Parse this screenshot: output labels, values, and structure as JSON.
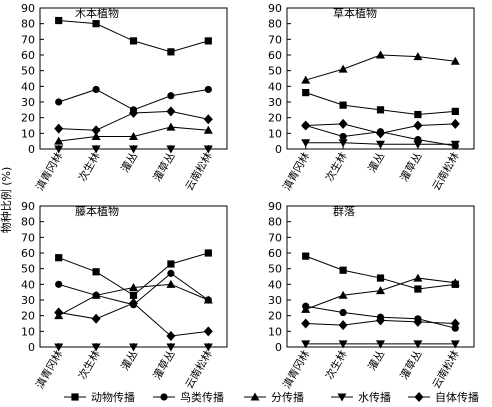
{
  "figure": {
    "ylabel": "物种比例 (%)",
    "categories": [
      "滇青冈林",
      "次生林",
      "灌丛",
      "灌草丛",
      "云南松林"
    ],
    "yticks": [
      0,
      10,
      20,
      30,
      40,
      50,
      60,
      70,
      80,
      90
    ],
    "legend": [
      "动物传播",
      "鸟类传播",
      "分传播",
      "水传播",
      "自体传播"
    ]
  },
  "chart_data": [
    {
      "type": "line",
      "title": "木本植物",
      "ylim": [
        0,
        90
      ],
      "categories": [
        "滇青冈林",
        "次生林",
        "灌丛",
        "灌草丛",
        "云南松林"
      ],
      "series": [
        {
          "name": "动物传播",
          "marker": "square",
          "values": [
            82,
            80,
            69,
            62,
            69
          ]
        },
        {
          "name": "鸟类传播",
          "marker": "circle",
          "values": [
            30,
            38,
            25,
            34,
            38
          ]
        },
        {
          "name": "分传播",
          "marker": "triangle-up",
          "values": [
            5,
            8,
            8,
            14,
            12
          ]
        },
        {
          "name": "水传播",
          "marker": "triangle-down",
          "values": [
            0,
            0,
            0,
            0,
            0
          ]
        },
        {
          "name": "自体传播",
          "marker": "diamond",
          "values": [
            13,
            12,
            23,
            24,
            19
          ]
        }
      ]
    },
    {
      "type": "line",
      "title": "草本植物",
      "ylim": [
        0,
        90
      ],
      "categories": [
        "滇青冈林",
        "次生林",
        "灌丛",
        "灌草丛",
        "云南松林"
      ],
      "series": [
        {
          "name": "动物传播",
          "marker": "square",
          "values": [
            36,
            28,
            25,
            22,
            24
          ]
        },
        {
          "name": "鸟类传播",
          "marker": "circle",
          "values": [
            15,
            8,
            11,
            6,
            2
          ]
        },
        {
          "name": "分传播",
          "marker": "triangle-up",
          "values": [
            44,
            51,
            60,
            59,
            56
          ]
        },
        {
          "name": "水传播",
          "marker": "triangle-down",
          "values": [
            4,
            4,
            3,
            3,
            3
          ]
        },
        {
          "name": "自体传播",
          "marker": "diamond",
          "values": [
            15,
            16,
            10,
            15,
            16
          ]
        }
      ]
    },
    {
      "type": "line",
      "title": "藤本植物",
      "ylim": [
        0,
        90
      ],
      "categories": [
        "滇青冈林",
        "次生林",
        "灌丛",
        "灌草丛",
        "云南松林"
      ],
      "series": [
        {
          "name": "动物传播",
          "marker": "square",
          "values": [
            57,
            48,
            33,
            53,
            60
          ]
        },
        {
          "name": "鸟类传播",
          "marker": "circle",
          "values": [
            40,
            33,
            27,
            47,
            30
          ]
        },
        {
          "name": "分传播",
          "marker": "triangle-up",
          "values": [
            20,
            33,
            38,
            40,
            30
          ]
        },
        {
          "name": "水传播",
          "marker": "triangle-down",
          "values": [
            0,
            0,
            0,
            0,
            0
          ]
        },
        {
          "name": "自体传播",
          "marker": "diamond",
          "values": [
            22,
            18,
            28,
            7,
            10
          ]
        }
      ]
    },
    {
      "type": "line",
      "title": "群落",
      "ylim": [
        0,
        90
      ],
      "categories": [
        "滇青冈林",
        "次生林",
        "灌丛",
        "灌草丛",
        "云南松林"
      ],
      "series": [
        {
          "name": "动物传播",
          "marker": "square",
          "values": [
            58,
            49,
            44,
            37,
            40
          ]
        },
        {
          "name": "鸟类传播",
          "marker": "circle",
          "values": [
            26,
            22,
            19,
            18,
            12
          ]
        },
        {
          "name": "分传播",
          "marker": "triangle-up",
          "values": [
            24,
            33,
            36,
            44,
            41
          ]
        },
        {
          "name": "水传播",
          "marker": "triangle-down",
          "values": [
            2,
            2,
            2,
            2,
            2
          ]
        },
        {
          "name": "自体传播",
          "marker": "diamond",
          "values": [
            15,
            14,
            17,
            16,
            15
          ]
        }
      ]
    }
  ]
}
